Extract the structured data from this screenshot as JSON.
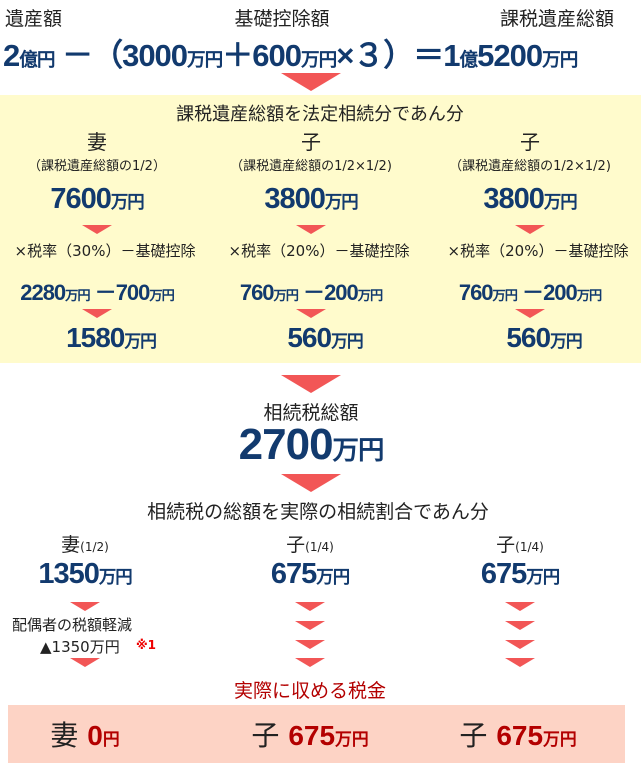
{
  "colors": {
    "navy": "#123a6e",
    "arrow": "#f25656",
    "highlight_bg": "#fffbcc",
    "result_bg": "#fdd3c5",
    "result_text": "#b30000"
  },
  "header": {
    "label_estate": "遺産額",
    "label_deduction": "基礎控除額",
    "label_taxable": "課税遺産総額"
  },
  "formula": {
    "estate": "2",
    "estate_unit": "億円",
    "minus": "－（",
    "base": "3000",
    "base_unit": "万円",
    "plus": "＋",
    "per_heir": "600",
    "per_heir_unit": "万円",
    "times": "×３）＝",
    "result_oku": "1",
    "result_oku_unit": "億",
    "result": "5200",
    "result_unit": "万円"
  },
  "statutory": {
    "title": "課税遺産総額を法定相続分であん分",
    "columns": [
      {
        "heir": "妻",
        "share": "（課税遺産総額の1/2）",
        "amount": "7600",
        "rate": "×税率（30%）－基礎控除",
        "calc_a": "2280",
        "calc_b": "700",
        "tax": "1580"
      },
      {
        "heir": "子",
        "share": "（課税遺産総額の1/2×1/2)",
        "amount": "3800",
        "rate": "×税率（20%）－基礎控除",
        "calc_a": "760",
        "calc_b": "200",
        "tax": "560"
      },
      {
        "heir": "子",
        "share": "（課税遺産総額の1/2×1/2)",
        "amount": "3800",
        "rate": "×税率（20%）－基礎控除",
        "calc_a": "760",
        "calc_b": "200",
        "tax": "560"
      }
    ]
  },
  "unit_man": "万円",
  "unit_en": "円",
  "minus_sign": "－",
  "total": {
    "label": "相続税総額",
    "amount": "2700"
  },
  "actual": {
    "title": "相続税の総額を実際の相続割合であん分",
    "columns": [
      {
        "heir": "妻",
        "ratio": "(1/2)",
        "amount": "1350"
      },
      {
        "heir": "子",
        "ratio": "(1/4)",
        "amount": "675"
      },
      {
        "heir": "子",
        "ratio": "(1/4)",
        "amount": "675"
      }
    ],
    "spouse_relief_label": "配偶者の税額軽減",
    "spouse_relief_amount": "▲1350万円",
    "note": "※1"
  },
  "final": {
    "title": "実際に収める税金",
    "items": [
      {
        "heir": "妻",
        "amount": "0",
        "unit": "円"
      },
      {
        "heir": "子",
        "amount": "675",
        "unit": "万円"
      },
      {
        "heir": "子",
        "amount": "675",
        "unit": "万円"
      }
    ]
  }
}
